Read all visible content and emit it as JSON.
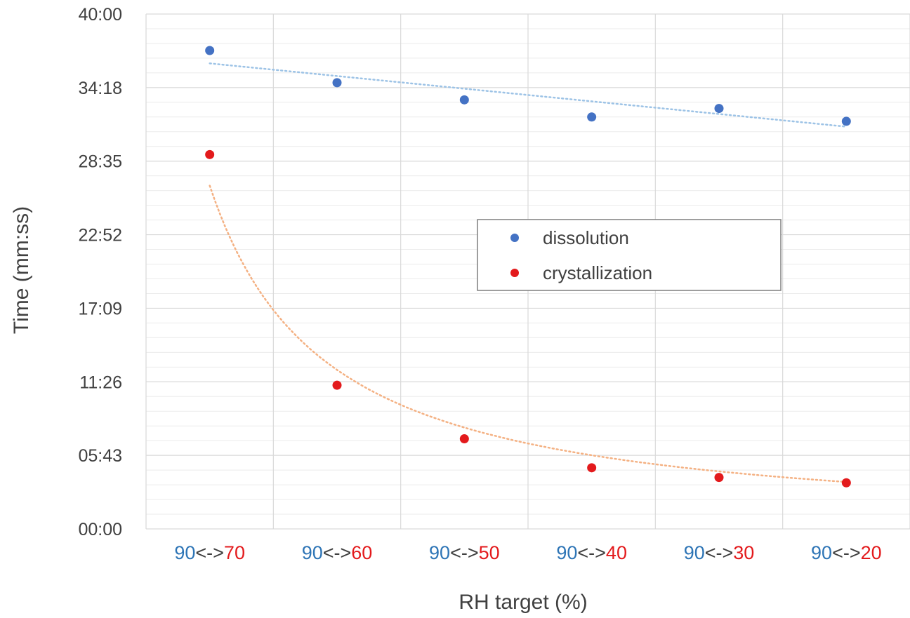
{
  "chart_data": {
    "type": "scatter",
    "title": "",
    "xlabel": "RH target (%)",
    "ylabel": "Time (mm:ss)",
    "categories": [
      {
        "from": "90",
        "sep": "<->",
        "to": "70"
      },
      {
        "from": "90",
        "sep": "<->",
        "to": "60"
      },
      {
        "from": "90",
        "sep": "<->",
        "to": "50"
      },
      {
        "from": "90",
        "sep": "<->",
        "to": "40"
      },
      {
        "from": "90",
        "sep": "<->",
        "to": "30"
      },
      {
        "from": "90",
        "sep": "<->",
        "to": "20"
      }
    ],
    "y_ticks": [
      "00:00",
      "05:43",
      "11:26",
      "17:09",
      "22:52",
      "28:35",
      "34:18",
      "40:00"
    ],
    "ylim_seconds": [
      0,
      2400
    ],
    "grid": true,
    "legend_position": "center-right",
    "series": [
      {
        "name": "dissolution",
        "color": "#4472C4",
        "values_mmss": [
          "37:10",
          "34:40",
          "33:20",
          "32:00",
          "32:40",
          "31:40"
        ],
        "values_seconds": [
          2230,
          2080,
          2000,
          1920,
          1960,
          1900
        ],
        "trendline": {
          "type": "linear",
          "color": "#9DC3E6",
          "start_seconds": 2170,
          "end_seconds": 1875
        }
      },
      {
        "name": "crystallization",
        "color": "#E31A1C",
        "values_mmss": [
          "29:05",
          "11:10",
          "07:00",
          "04:45",
          "04:00",
          "03:35"
        ],
        "values_seconds": [
          1745,
          670,
          420,
          285,
          240,
          215
        ],
        "trendline": {
          "type": "power",
          "color": "#F4B183",
          "a_seconds": 1600,
          "b": -1.11
        }
      }
    ],
    "category_colors": {
      "from": "#2E75B6",
      "sep": "#404040",
      "to": "#E31A1C"
    },
    "colors": {
      "grid": "#D9D9D9",
      "minor_grid": "#EBEBEB",
      "text": "#404040"
    }
  }
}
